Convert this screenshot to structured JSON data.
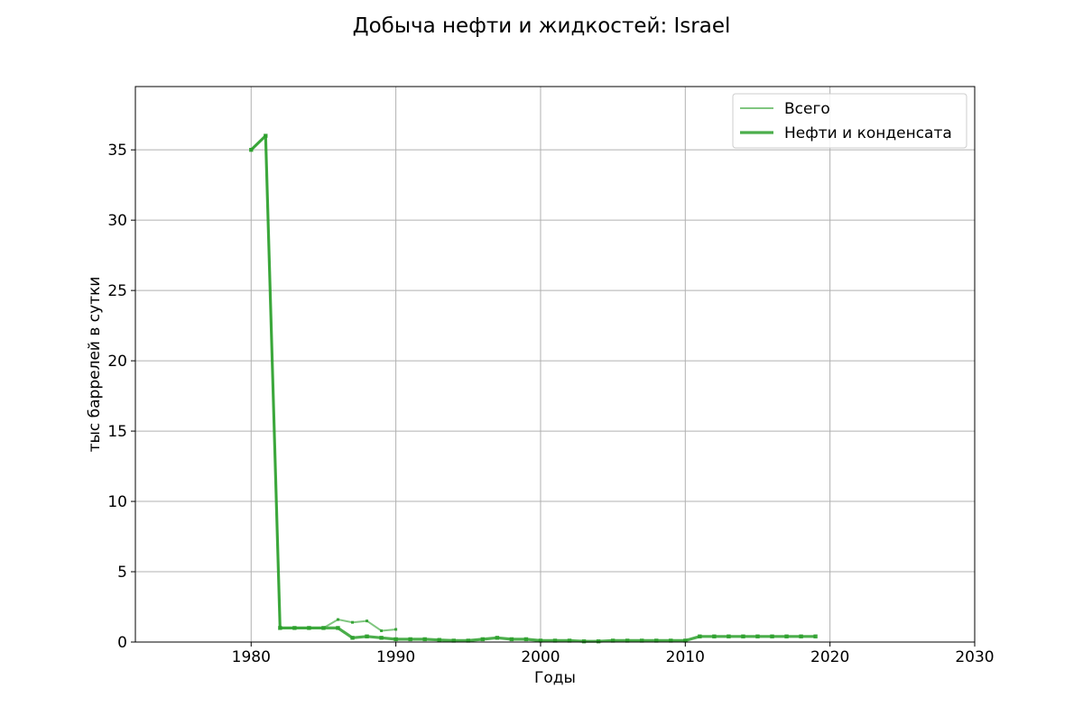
{
  "chart_data": {
    "type": "line",
    "title": "Добыча нефти и жидкостей: Israel",
    "xlabel": "Годы",
    "ylabel": "тыс баррелей в сутки",
    "xlim": [
      1972,
      2030
    ],
    "ylim": [
      0,
      39.5
    ],
    "xticks": [
      1980,
      1990,
      2000,
      2010,
      2020,
      2030
    ],
    "yticks": [
      0,
      5,
      10,
      15,
      20,
      25,
      30,
      35
    ],
    "grid": true,
    "legend_position": "top-right",
    "series_color": "#2ca02c",
    "series": [
      {
        "name": "Всего",
        "style": "thin",
        "x": [
          1980,
          1981,
          1982,
          1983,
          1984,
          1985,
          1986,
          1987,
          1988,
          1989,
          1990
        ],
        "y": [
          35,
          36,
          1.0,
          1.0,
          1.0,
          1.0,
          1.6,
          1.4,
          1.5,
          0.8,
          0.9
        ]
      },
      {
        "name": "Нефти и конденсата",
        "style": "thick",
        "x": [
          1980,
          1981,
          1982,
          1983,
          1984,
          1985,
          1986,
          1987,
          1988,
          1989,
          1990,
          1991,
          1992,
          1993,
          1994,
          1995,
          1996,
          1997,
          1998,
          1999,
          2000,
          2001,
          2002,
          2003,
          2004,
          2005,
          2006,
          2007,
          2008,
          2009,
          2010,
          2011,
          2012,
          2013,
          2014,
          2015,
          2016,
          2017,
          2018,
          2019
        ],
        "y": [
          35,
          36,
          1.0,
          1.0,
          1.0,
          1.0,
          1.0,
          0.3,
          0.4,
          0.3,
          0.2,
          0.2,
          0.2,
          0.15,
          0.1,
          0.1,
          0.2,
          0.3,
          0.2,
          0.2,
          0.1,
          0.1,
          0.1,
          0.05,
          0.05,
          0.1,
          0.1,
          0.1,
          0.1,
          0.1,
          0.1,
          0.4,
          0.4,
          0.4,
          0.4,
          0.4,
          0.4,
          0.4,
          0.4,
          0.4
        ]
      }
    ]
  }
}
